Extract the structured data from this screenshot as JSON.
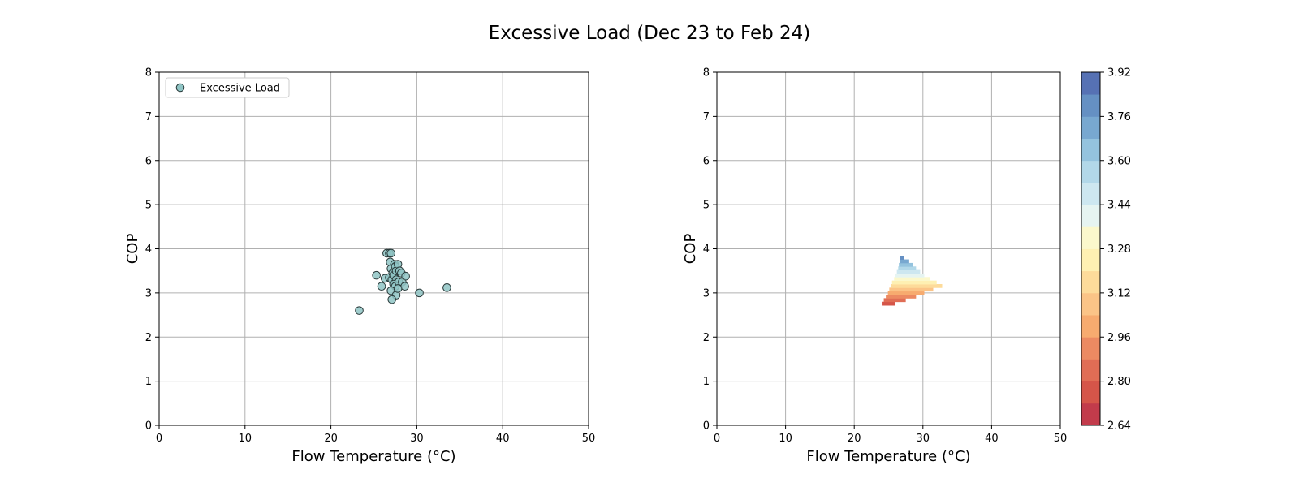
{
  "figure_title": "Excessive Load (Dec 23 to Feb 24)",
  "chart_data": [
    {
      "type": "scatter",
      "title": "",
      "xlabel": "Flow Temperature (°C)",
      "ylabel": "COP",
      "xlim": [
        0,
        50
      ],
      "ylim": [
        0,
        8
      ],
      "xticks": [
        "0",
        "10",
        "20",
        "30",
        "40",
        "50"
      ],
      "yticks": [
        "0",
        "1",
        "2",
        "3",
        "4",
        "5",
        "6",
        "7",
        "8"
      ],
      "grid": true,
      "legend": {
        "placement": "upper-left",
        "entries": [
          "Excessive Load"
        ]
      },
      "series": [
        {
          "name": "Excessive Load",
          "color": "#8fc4c4",
          "edge_color": "#2a3a3a",
          "points": [
            [
              23.3,
              2.6
            ],
            [
              25.3,
              3.4
            ],
            [
              25.9,
              3.15
            ],
            [
              26.3,
              3.33
            ],
            [
              26.5,
              3.9
            ],
            [
              26.8,
              3.9
            ],
            [
              27.0,
              3.9
            ],
            [
              26.9,
              3.7
            ],
            [
              27.0,
              3.55
            ],
            [
              26.8,
              3.35
            ],
            [
              27.1,
              3.3
            ],
            [
              27.2,
              3.45
            ],
            [
              27.3,
              3.4
            ],
            [
              27.4,
              3.65
            ],
            [
              27.5,
              3.6
            ],
            [
              27.6,
              3.5
            ],
            [
              27.8,
              3.65
            ],
            [
              27.6,
              3.3
            ],
            [
              27.3,
              3.2
            ],
            [
              27.5,
              3.15
            ],
            [
              27.9,
              3.25
            ],
            [
              28.0,
              3.5
            ],
            [
              28.2,
              3.45
            ],
            [
              28.3,
              3.25
            ],
            [
              28.6,
              3.15
            ],
            [
              28.7,
              3.38
            ],
            [
              27.0,
              3.05
            ],
            [
              27.6,
              2.95
            ],
            [
              27.1,
              2.85
            ],
            [
              27.8,
              3.1
            ],
            [
              30.3,
              3.0
            ],
            [
              33.5,
              3.12
            ]
          ]
        }
      ]
    },
    {
      "type": "heatmap",
      "title": "",
      "xlabel": "Flow Temperature (°C)",
      "ylabel": "COP",
      "xlim": [
        0,
        50
      ],
      "ylim": [
        0,
        8
      ],
      "xticks": [
        "0",
        "10",
        "20",
        "30",
        "40",
        "50"
      ],
      "yticks": [
        "0",
        "1",
        "2",
        "3",
        "4",
        "5",
        "6",
        "7",
        "8"
      ],
      "grid": true,
      "colorbar": {
        "min": 2.64,
        "max": 3.92,
        "levels": [
          2.64,
          2.72,
          2.8,
          2.88,
          2.96,
          3.04,
          3.12,
          3.2,
          3.28,
          3.36,
          3.44,
          3.52,
          3.6,
          3.68,
          3.76,
          3.84,
          3.92
        ],
        "tick_labels": [
          "2.64",
          "2.80",
          "2.96",
          "3.12",
          "3.28",
          "3.44",
          "3.60",
          "3.76",
          "3.92"
        ],
        "colors": [
          "#c23b4b",
          "#d55549",
          "#e06d55",
          "#ec8a62",
          "#f7ab6f",
          "#fbc487",
          "#fddb9a",
          "#fef0b2",
          "#fbf8cc",
          "#e6f4f1",
          "#cde7f0",
          "#b2d8e9",
          "#94c3de",
          "#78a8d0",
          "#6590c3",
          "#5671b4"
        ]
      },
      "contour_region": {
        "description_levels": "bands of COP from 2.72 (bottom) to 3.84 (top)",
        "rows": [
          {
            "y": [
              2.72,
              2.8
            ],
            "x": [
              24.0,
              26.0
            ]
          },
          {
            "y": [
              2.8,
              2.88
            ],
            "x": [
              24.3,
              27.5
            ]
          },
          {
            "y": [
              2.88,
              2.96
            ],
            "x": [
              24.6,
              29.0
            ]
          },
          {
            "y": [
              2.96,
              3.04
            ],
            "x": [
              24.9,
              30.2
            ]
          },
          {
            "y": [
              3.04,
              3.12
            ],
            "x": [
              25.1,
              31.5
            ]
          },
          {
            "y": [
              3.12,
              3.2
            ],
            "x": [
              25.3,
              32.8
            ]
          },
          {
            "y": [
              3.2,
              3.28
            ],
            "x": [
              25.5,
              32.0
            ]
          },
          {
            "y": [
              3.28,
              3.36
            ],
            "x": [
              25.8,
              31.0
            ]
          },
          {
            "y": [
              3.36,
              3.44
            ],
            "x": [
              26.0,
              30.2
            ]
          },
          {
            "y": [
              3.44,
              3.52
            ],
            "x": [
              26.2,
              29.6
            ]
          },
          {
            "y": [
              3.52,
              3.6
            ],
            "x": [
              26.4,
              29.0
            ]
          },
          {
            "y": [
              3.6,
              3.68
            ],
            "x": [
              26.5,
              28.5
            ]
          },
          {
            "y": [
              3.68,
              3.76
            ],
            "x": [
              26.6,
              28.0
            ]
          },
          {
            "y": [
              3.76,
              3.84
            ],
            "x": [
              26.7,
              27.2
            ]
          }
        ]
      }
    }
  ]
}
